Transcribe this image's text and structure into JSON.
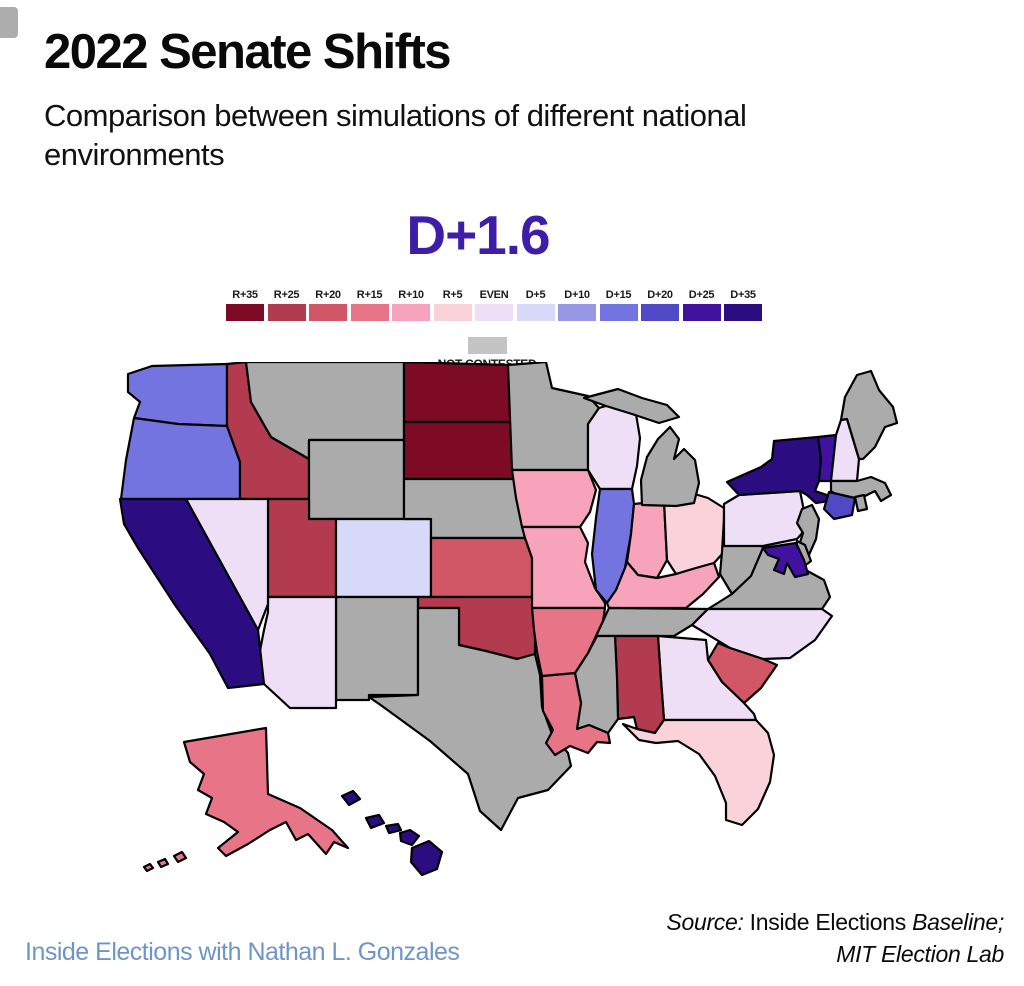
{
  "page": {
    "background": "#FFFFFF"
  },
  "header": {
    "title": "2022 Senate Shifts",
    "subtitle": "Comparison between simulations of different national environments"
  },
  "environment_label": "D+1.6",
  "environment_color": "#3E1EA8",
  "legend": {
    "items": [
      {
        "label": "R+35",
        "color": "#7D0B25"
      },
      {
        "label": "R+25",
        "color": "#B23B4F"
      },
      {
        "label": "R+20",
        "color": "#D25766"
      },
      {
        "label": "R+15",
        "color": "#E87488"
      },
      {
        "label": "R+10",
        "color": "#F6A3BB"
      },
      {
        "label": "R+5",
        "color": "#FAD3DA"
      },
      {
        "label": "EVEN",
        "color": "#EEDFF7"
      },
      {
        "label": "D+5",
        "color": "#D8D8F8"
      },
      {
        "label": "D+10",
        "color": "#9797E6"
      },
      {
        "label": "D+15",
        "color": "#7474E1"
      },
      {
        "label": "D+20",
        "color": "#4F49C6"
      },
      {
        "label": "D+25",
        "color": "#41129F"
      },
      {
        "label": "D+35",
        "color": "#2C0D81"
      }
    ],
    "not_contested": {
      "label": "NOT CONTESTED",
      "color": "#C4C4C4"
    }
  },
  "map": {
    "not_contested_color": "#ABABAB",
    "border_color": "#000000"
  },
  "chart_data": {
    "type": "heatmap",
    "subtype": "us_state_choropleth",
    "title": "2022 Senate Shifts",
    "subtitle": "Comparison between simulations of different national environments",
    "national_environment": "D+1.6",
    "scale": [
      "R+35",
      "R+25",
      "R+20",
      "R+15",
      "R+10",
      "R+5",
      "EVEN",
      "D+5",
      "D+10",
      "D+15",
      "D+20",
      "D+25",
      "D+35",
      "NOT CONTESTED"
    ],
    "states": {
      "WA": "D+15",
      "OR": "D+15",
      "CA": "D+35",
      "NV": "EVEN",
      "ID": "R+25",
      "UT": "R+25",
      "AZ": "EVEN",
      "MT": "NOT CONTESTED",
      "WY": "NOT CONTESTED",
      "NM": "NOT CONTESTED",
      "CO": "D+5",
      "ND": "R+35",
      "SD": "R+35",
      "NE": "NOT CONTESTED",
      "KS": "R+20",
      "OK": "R+25",
      "TX": "NOT CONTESTED",
      "MN": "NOT CONTESTED",
      "IA": "R+10",
      "MO": "R+10",
      "AR": "R+15",
      "LA": "R+15",
      "WI": "EVEN",
      "IL": "D+15",
      "IN": "R+10",
      "MI": "NOT CONTESTED",
      "OH": "R+5",
      "KY": "R+10",
      "TN": "NOT CONTESTED",
      "MS": "NOT CONTESTED",
      "AL": "R+25",
      "GA": "EVEN",
      "FL": "R+5",
      "SC": "R+20",
      "NC": "EVEN",
      "VA": "NOT CONTESTED",
      "WV": "NOT CONTESTED",
      "MD": "D+25",
      "DE": "NOT CONTESTED",
      "PA": "EVEN",
      "NJ": "NOT CONTESTED",
      "NY": "D+35",
      "CT": "D+20",
      "RI": "NOT CONTESTED",
      "MA": "NOT CONTESTED",
      "VT": "D+25",
      "NH": "EVEN",
      "ME": "NOT CONTESTED",
      "AK": "R+15",
      "HI": "D+35"
    }
  },
  "footer": {
    "brand": "Inside Elections with Nathan L. Gonzales",
    "brand_color": "#6E95C9",
    "source": {
      "prefix": "Source:",
      "middle": " Inside Elections ",
      "emphasis": "Baseline;",
      "line2": "MIT Election Lab"
    }
  }
}
